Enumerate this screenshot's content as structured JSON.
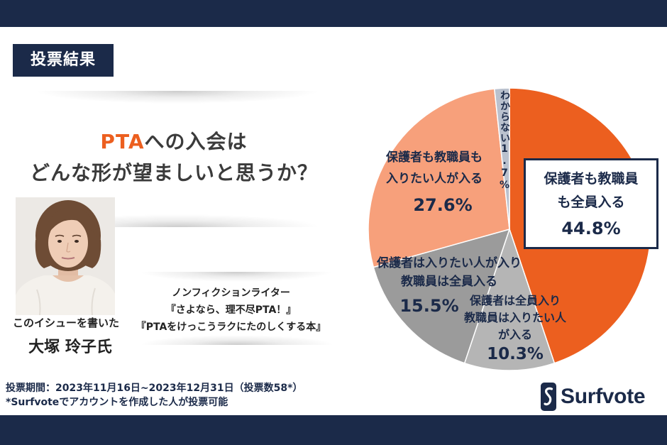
{
  "header": {
    "label": "投票結果"
  },
  "question": {
    "highlight": "PTA",
    "line1_rest": "への入会は",
    "line2": "どんな形が望ましいと思うか？"
  },
  "writer": {
    "photo_icon": "writer-portrait-photo",
    "caption": "このイシューを書いた",
    "name": "大塚 玲子氏",
    "profile": [
      "ノンフィクションライター",
      "『さよなら、理不尽PTA！』",
      "『PTAをけっこうラクにたのしくする本』"
    ]
  },
  "footer": {
    "period": "投票期間：2023年11月16日~2023年12月31日（投票数58*）",
    "note": "*Surfvoteでアカウントを作成した人が投票可能"
  },
  "logo": {
    "text": "Surfvote",
    "icon": "surfvote-logo-icon"
  },
  "colors": {
    "navy": "#1b2a49",
    "accent": "#ec5f1f",
    "text": "#3b3b3b"
  },
  "chart_data": {
    "type": "pie",
    "categories": [
      "保護者も教職員も全員入る",
      "保護者は全員入り教職員は入りたい人が入る",
      "保護者は入りたい人が入り教職員は全員入る",
      "保護者も教職員も入りたい人が入る",
      "わからない"
    ],
    "values": [
      44.8,
      10.3,
      15.5,
      27.6,
      1.7
    ],
    "value_labels": [
      "44.8%",
      "10.3%",
      "15.5%",
      "27.6%",
      "1.7%"
    ],
    "colors": [
      "#ec5f1f",
      "#b5b5b5",
      "#9b9b9b",
      "#f7a07b",
      "#bac1ce"
    ],
    "boxed_index": 0
  }
}
